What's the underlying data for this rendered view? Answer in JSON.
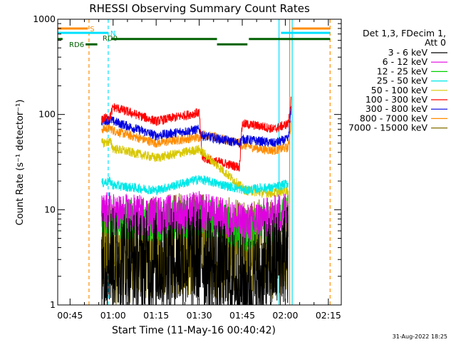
{
  "chart_data": {
    "type": "line",
    "title": "RHESSI Observing Summary Count Rates",
    "xlabel": "Start Time (11-May-16 00:40:42)",
    "ylabel": "Count Rate (s⁻¹ detector⁻¹)",
    "y_scale": "log",
    "xlim_minutes": [
      40.7,
      139.5
    ],
    "ylim": [
      1,
      1000
    ],
    "x_ticks": [
      {
        "label": "00:45",
        "minutes": 45
      },
      {
        "label": "01:00",
        "minutes": 60
      },
      {
        "label": "01:15",
        "minutes": 75
      },
      {
        "label": "01:30",
        "minutes": 90
      },
      {
        "label": "01:45",
        "minutes": 105
      },
      {
        "label": "02:00",
        "minutes": 120
      },
      {
        "label": "02:15",
        "minutes": 135
      }
    ],
    "y_ticks": [
      {
        "label": "1",
        "value": 1
      },
      {
        "label": "10",
        "value": 10
      },
      {
        "label": "100",
        "value": 100
      },
      {
        "label": "1000",
        "value": 1000
      }
    ],
    "legend_title": [
      "Det 1,3, FDecim 1,",
      "Att 0"
    ],
    "legend_position": "right",
    "series": [
      {
        "name": "3 - 6 keV",
        "color": "#000000",
        "values": [
          [
            56,
            3.0
          ],
          [
            59,
            3.2
          ],
          [
            60,
            3.0
          ],
          [
            75,
            2.8
          ],
          [
            90,
            3.2
          ],
          [
            106,
            1.5
          ],
          [
            112,
            2.0
          ],
          [
            116,
            2.8
          ],
          [
            121,
            3.5
          ]
        ]
      },
      {
        "name": "6 - 12 keV",
        "color": "#e000e0",
        "values": [
          [
            56,
            9
          ],
          [
            59,
            9.5
          ],
          [
            60,
            9
          ],
          [
            75,
            8.5
          ],
          [
            90,
            9.5
          ],
          [
            106,
            7
          ],
          [
            112,
            8
          ],
          [
            116,
            8.5
          ],
          [
            121,
            10
          ]
        ]
      },
      {
        "name": "12 - 25 keV",
        "color": "#00d000",
        "values": [
          [
            56,
            8
          ],
          [
            59,
            8.5
          ],
          [
            60,
            8
          ],
          [
            75,
            7.5
          ],
          [
            90,
            8.5
          ],
          [
            106,
            6
          ],
          [
            112,
            7
          ],
          [
            116,
            7.5
          ],
          [
            121,
            9
          ]
        ]
      },
      {
        "name": "25 - 50 keV",
        "color": "#00e8e8",
        "values": [
          [
            56,
            19
          ],
          [
            59,
            20
          ],
          [
            60,
            18
          ],
          [
            75,
            16
          ],
          [
            90,
            21
          ],
          [
            106,
            16
          ],
          [
            112,
            17
          ],
          [
            116,
            17
          ],
          [
            121,
            19
          ]
        ]
      },
      {
        "name": "50 - 100 keV",
        "color": "#d8c800",
        "values": [
          [
            56,
            50
          ],
          [
            59,
            52
          ],
          [
            60,
            44
          ],
          [
            75,
            35
          ],
          [
            90,
            43
          ],
          [
            106,
            16
          ],
          [
            112,
            15
          ],
          [
            116,
            15
          ],
          [
            121,
            16
          ]
        ]
      },
      {
        "name": "100 - 300 keV",
        "color": "#ff0000",
        "values": [
          [
            56,
            90
          ],
          [
            59,
            95
          ],
          [
            60,
            120
          ],
          [
            75,
            85
          ],
          [
            90,
            105
          ],
          [
            91,
            35
          ],
          [
            104,
            28
          ],
          [
            105,
            80
          ],
          [
            112,
            75
          ],
          [
            116,
            70
          ],
          [
            121,
            80
          ],
          [
            122,
            140
          ]
        ]
      },
      {
        "name": "300 - 800 keV",
        "color": "#0000e0",
        "values": [
          [
            56,
            85
          ],
          [
            59,
            88
          ],
          [
            60,
            85
          ],
          [
            75,
            60
          ],
          [
            90,
            70
          ],
          [
            91,
            60
          ],
          [
            104,
            50
          ],
          [
            105,
            55
          ],
          [
            112,
            52
          ],
          [
            116,
            50
          ],
          [
            121,
            55
          ],
          [
            122,
            110
          ]
        ]
      },
      {
        "name": "800 - 7000 keV",
        "color": "#ff8c00",
        "values": [
          [
            56,
            70
          ],
          [
            59,
            72
          ],
          [
            60,
            68
          ],
          [
            75,
            50
          ],
          [
            90,
            58
          ],
          [
            91,
            62
          ],
          [
            104,
            50
          ],
          [
            105,
            48
          ],
          [
            112,
            43
          ],
          [
            116,
            42
          ],
          [
            121,
            45
          ],
          [
            122,
            80
          ]
        ]
      },
      {
        "name": "7000 - 15000 keV",
        "color": "#807000",
        "values": [
          [
            56,
            3.5
          ],
          [
            59,
            4.0
          ],
          [
            60,
            3.5
          ],
          [
            75,
            4.0
          ],
          [
            90,
            4.5
          ],
          [
            106,
            3.5
          ],
          [
            112,
            4.0
          ],
          [
            116,
            4.0
          ],
          [
            121,
            5.0
          ]
        ]
      }
    ],
    "vertical_markers": [
      {
        "minutes": 51.6,
        "color": "#ff8c00",
        "style": "dashed"
      },
      {
        "minutes": 58.3,
        "color": "#00e0ff",
        "style": "dashed"
      },
      {
        "minutes": 117.8,
        "color": "#00e0ff",
        "style": "solid"
      },
      {
        "minutes": 122.4,
        "color": "#00e0ff",
        "style": "solid"
      },
      {
        "minutes": 121.5,
        "color": "#ff8c00",
        "style": "solid"
      },
      {
        "minutes": 135.6,
        "color": "#ff8c00",
        "style": "dashed"
      }
    ],
    "flag_bars": [
      {
        "label": "S",
        "color": "#ff8c00",
        "y_value": 800,
        "segments": [
          [
            40.7,
            51.2
          ],
          [
            122.4,
            135.6
          ]
        ]
      },
      {
        "label": "N",
        "color": "#00e0ff",
        "y_value": 720,
        "segments": [
          [
            40.7,
            58.3
          ],
          [
            118.5,
            135.6
          ]
        ]
      },
      {
        "label": "RD0",
        "color": "#006000",
        "y_value": 620,
        "segments": [
          [
            40.7,
            42.4
          ],
          [
            59.3,
            96.2
          ],
          [
            107.3,
            135.6
          ]
        ]
      },
      {
        "label": "RD6",
        "color": "#006000",
        "y_value": 545,
        "segments": [
          [
            50.4,
            54.5
          ],
          [
            96.2,
            106.8
          ]
        ]
      }
    ],
    "timestamp": "31-Aug-2022 18:25"
  }
}
